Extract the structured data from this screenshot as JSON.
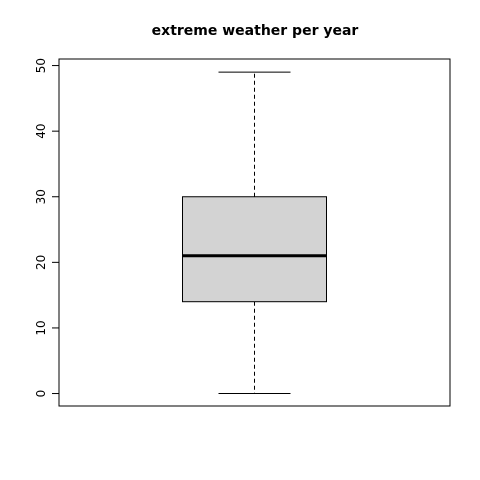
{
  "chart_data": {
    "type": "box",
    "title": "extreme weather per year",
    "xlabel": "",
    "ylabel": "",
    "ylim": [
      -1.9,
      51
    ],
    "yticks": [
      0,
      10,
      20,
      30,
      40,
      50
    ],
    "grid": false,
    "box": {
      "min": 0,
      "q1": 14,
      "median": 21,
      "q3": 30,
      "max": 49
    },
    "colors": {
      "box_fill": "#d3d3d3",
      "stroke": "#000000"
    }
  }
}
